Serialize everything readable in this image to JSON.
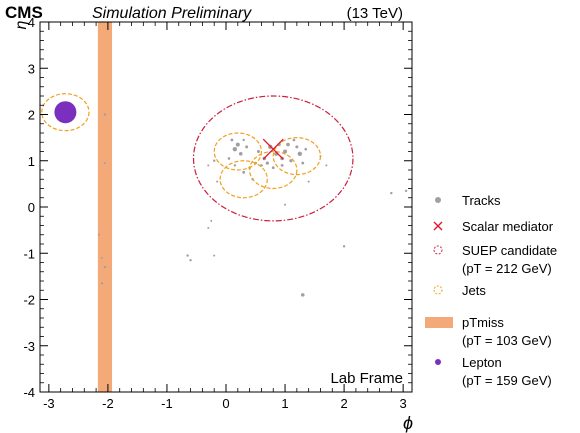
{
  "header": {
    "cms": "CMS",
    "subtitle": "Simulation Preliminary",
    "energy": "(13 TeV)"
  },
  "chart_data": {
    "type": "scatter",
    "xlabel": "ϕ",
    "ylabel": "η",
    "xlim": [
      -3.15,
      3.15
    ],
    "ylim": [
      -4,
      4
    ],
    "x_ticks": [
      "-3",
      "-2",
      "-1",
      "0",
      "1",
      "2",
      "3"
    ],
    "y_ticks": [
      "-4",
      "-3",
      "-2",
      "-1",
      "0",
      "1",
      "2",
      "3",
      "4"
    ],
    "annotation": "Lab Frame",
    "legend_position": "right",
    "colors": {
      "tracks": "#a0a0a0",
      "mediator": "#e0192c",
      "suep": "#cc1f3c",
      "jets": "#f0a020",
      "met": "#f4aa78",
      "lepton": "#7b2fbe"
    },
    "legend": [
      {
        "key": "tracks",
        "line1": "Tracks",
        "line2": ""
      },
      {
        "key": "mediator",
        "line1": "Scalar mediator",
        "line2": ""
      },
      {
        "key": "suep",
        "line1": "SUEP candidate",
        "line2": "(pT = 212 GeV)"
      },
      {
        "key": "jets",
        "line1": "Jets",
        "line2": ""
      },
      {
        "key": "met",
        "line1": "pTmiss",
        "line2": "(pT = 103 GeV)"
      },
      {
        "key": "lepton",
        "line1": "Lepton",
        "line2": "(pT = 159 GeV)"
      }
    ],
    "lepton": {
      "phi": -2.72,
      "eta": 2.05,
      "pt": 159
    },
    "met": {
      "phi": -2.05,
      "pt": 103
    },
    "mediator": {
      "phi": 0.8,
      "eta": 1.25
    },
    "suep": {
      "phi": 0.8,
      "eta": 1.05,
      "r": 1.35,
      "pt": 212
    },
    "jets": [
      {
        "phi": -2.72,
        "eta": 2.05,
        "r": 0.4
      },
      {
        "phi": 0.2,
        "eta": 1.2,
        "r": 0.4
      },
      {
        "phi": 1.2,
        "eta": 1.1,
        "r": 0.4
      },
      {
        "phi": 0.3,
        "eta": 0.6,
        "r": 0.4
      },
      {
        "phi": 0.8,
        "eta": 0.8,
        "r": 0.4
      }
    ],
    "tracks": [
      {
        "phi": 0.15,
        "eta": 1.25,
        "s": 2.2
      },
      {
        "phi": 0.2,
        "eta": 1.35,
        "s": 2.0
      },
      {
        "phi": 0.25,
        "eta": 1.15,
        "s": 1.8
      },
      {
        "phi": 0.1,
        "eta": 1.45,
        "s": 1.4
      },
      {
        "phi": 0.35,
        "eta": 1.3,
        "s": 1.5
      },
      {
        "phi": 0.05,
        "eta": 1.05,
        "s": 1.3
      },
      {
        "phi": 0.3,
        "eta": 1.45,
        "s": 1.2
      },
      {
        "phi": 0.75,
        "eta": 1.3,
        "s": 2.2
      },
      {
        "phi": 0.85,
        "eta": 1.15,
        "s": 2.0
      },
      {
        "phi": 0.65,
        "eta": 1.05,
        "s": 1.8
      },
      {
        "phi": 0.9,
        "eta": 1.35,
        "s": 1.6
      },
      {
        "phi": 0.7,
        "eta": 0.95,
        "s": 1.6
      },
      {
        "phi": 0.55,
        "eta": 1.2,
        "s": 1.5
      },
      {
        "phi": 0.95,
        "eta": 1.05,
        "s": 1.8
      },
      {
        "phi": 0.8,
        "eta": 0.85,
        "s": 1.4
      },
      {
        "phi": 0.6,
        "eta": 0.9,
        "s": 1.3
      },
      {
        "phi": 1.0,
        "eta": 1.2,
        "s": 2.0
      },
      {
        "phi": 1.05,
        "eta": 1.35,
        "s": 1.8
      },
      {
        "phi": 1.1,
        "eta": 1.0,
        "s": 1.6
      },
      {
        "phi": 1.2,
        "eta": 1.3,
        "s": 1.5
      },
      {
        "phi": 1.15,
        "eta": 1.45,
        "s": 1.3
      },
      {
        "phi": 1.25,
        "eta": 1.15,
        "s": 2.2
      },
      {
        "phi": 1.3,
        "eta": 0.95,
        "s": 1.4
      },
      {
        "phi": 1.35,
        "eta": 1.25,
        "s": 1.3
      },
      {
        "phi": 0.95,
        "eta": 0.9,
        "s": 1.4
      },
      {
        "phi": 0.3,
        "eta": 0.75,
        "s": 1.4
      },
      {
        "phi": 0.4,
        "eta": 0.85,
        "s": 1.3
      },
      {
        "phi": 0.15,
        "eta": 0.9,
        "s": 1.2
      },
      {
        "phi": 0.5,
        "eta": 0.95,
        "s": 1.3
      },
      {
        "phi": 0.45,
        "eta": 0.6,
        "s": 1.2
      },
      {
        "phi": -0.2,
        "eta": 1.0,
        "s": 1.2
      },
      {
        "phi": -0.3,
        "eta": 0.9,
        "s": 1.0
      },
      {
        "phi": -0.15,
        "eta": 0.55,
        "s": 1.0
      },
      {
        "phi": 1.6,
        "eta": 1.1,
        "s": 1.0
      },
      {
        "phi": 1.7,
        "eta": 0.9,
        "s": 1.0
      },
      {
        "phi": 1.4,
        "eta": 0.55,
        "s": 1.0
      },
      {
        "phi": 1.0,
        "eta": 0.05,
        "s": 1.0
      },
      {
        "phi": -0.25,
        "eta": -0.3,
        "s": 1.0
      },
      {
        "phi": -0.3,
        "eta": -0.45,
        "s": 1.0
      },
      {
        "phi": -0.65,
        "eta": -1.05,
        "s": 1.2
      },
      {
        "phi": -0.6,
        "eta": -1.15,
        "s": 1.2
      },
      {
        "phi": -0.2,
        "eta": -1.05,
        "s": 1.0
      },
      {
        "phi": 1.3,
        "eta": -1.9,
        "s": 1.8
      },
      {
        "phi": 2.0,
        "eta": -0.85,
        "s": 1.2
      },
      {
        "phi": 2.8,
        "eta": 0.3,
        "s": 1.2
      },
      {
        "phi": 3.05,
        "eta": 0.35,
        "s": 1.2
      },
      {
        "phi": -2.05,
        "eta": 2.0,
        "s": 1.2
      },
      {
        "phi": -2.05,
        "eta": 0.95,
        "s": 1.0
      },
      {
        "phi": -2.05,
        "eta": -1.3,
        "s": 1.2
      },
      {
        "phi": -2.1,
        "eta": -1.65,
        "s": 1.2
      },
      {
        "phi": -2.15,
        "eta": -0.6,
        "s": 1.0
      },
      {
        "phi": -2.1,
        "eta": -1.1,
        "s": 1.0
      }
    ]
  }
}
